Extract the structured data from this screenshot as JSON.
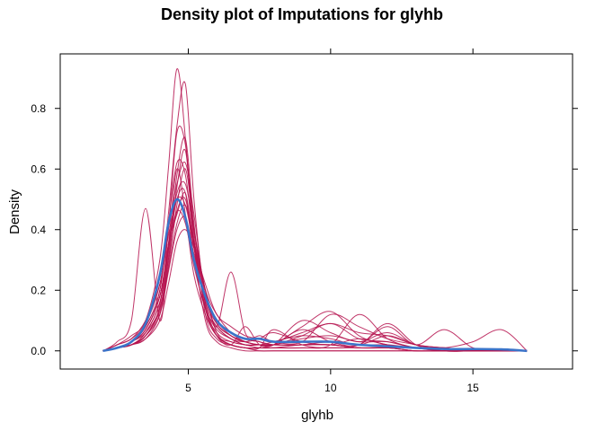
{
  "chart_data": {
    "type": "line",
    "title": "Density plot of Imputations for glyhb",
    "xlabel": "glyhb",
    "ylabel": "Density",
    "xlim": [
      0.5,
      18.5
    ],
    "ylim": [
      -0.06,
      0.98
    ],
    "x_ticks": [
      5,
      10,
      15
    ],
    "x_tick_labels": [
      "5",
      "10",
      "15"
    ],
    "y_ticks": [
      0.0,
      0.2,
      0.4,
      0.6,
      0.8
    ],
    "y_tick_labels": [
      "0.0",
      "0.2",
      "0.4",
      "0.6",
      "0.8"
    ],
    "grid": false,
    "legend": "none",
    "colors": {
      "observed": "#3b74c9",
      "imputed": "#b5124e"
    },
    "x": [
      2.0,
      2.5,
      3.0,
      3.5,
      4.0,
      4.3,
      4.6,
      4.9,
      5.2,
      5.6,
      6.0,
      6.5,
      7.0,
      7.5,
      8.0,
      9.0,
      10.0,
      11.0,
      12.0,
      13.0,
      14.0,
      15.0,
      16.0,
      16.9
    ],
    "series": [
      {
        "role": "observed",
        "values": [
          0.0,
          0.01,
          0.03,
          0.09,
          0.25,
          0.42,
          0.5,
          0.44,
          0.3,
          0.18,
          0.1,
          0.06,
          0.04,
          0.04,
          0.03,
          0.03,
          0.03,
          0.02,
          0.015,
          0.01,
          0.006,
          0.006,
          0.005,
          0.0
        ]
      },
      {
        "role": "imputed",
        "values": [
          0.0,
          0.03,
          0.1,
          0.47,
          0.1,
          0.35,
          0.6,
          0.45,
          0.25,
          0.12,
          0.05,
          0.02,
          0.01,
          0.01,
          0.01,
          0.02,
          0.02,
          0.01,
          0.01,
          0.0,
          0.0,
          0.0,
          0.0,
          0.0
        ]
      },
      {
        "role": "imputed",
        "values": [
          0.0,
          0.02,
          0.05,
          0.1,
          0.3,
          0.6,
          0.93,
          0.7,
          0.35,
          0.1,
          0.03,
          0.01,
          0.0,
          0.0,
          0.0,
          0.0,
          0.0,
          0.0,
          0.0,
          0.0,
          0.0,
          0.0,
          0.0,
          0.0
        ]
      },
      {
        "role": "imputed",
        "values": [
          0.0,
          0.01,
          0.03,
          0.08,
          0.2,
          0.45,
          0.74,
          0.88,
          0.5,
          0.15,
          0.05,
          0.02,
          0.01,
          0.01,
          0.01,
          0.01,
          0.01,
          0.01,
          0.01,
          0.0,
          0.0,
          0.0,
          0.0,
          0.0
        ]
      },
      {
        "role": "imputed",
        "values": [
          0.0,
          0.01,
          0.02,
          0.05,
          0.15,
          0.4,
          0.72,
          0.68,
          0.4,
          0.2,
          0.06,
          0.02,
          0.01,
          0.0,
          0.0,
          0.0,
          0.0,
          0.0,
          0.0,
          0.0,
          0.0,
          0.0,
          0.0,
          0.0
        ]
      },
      {
        "role": "imputed",
        "values": [
          0.0,
          0.02,
          0.04,
          0.09,
          0.22,
          0.4,
          0.55,
          0.62,
          0.45,
          0.18,
          0.1,
          0.06,
          0.04,
          0.03,
          0.02,
          0.02,
          0.02,
          0.01,
          0.01,
          0.01,
          0.0,
          0.0,
          0.0,
          0.0
        ]
      },
      {
        "role": "imputed",
        "values": [
          0.0,
          0.01,
          0.03,
          0.07,
          0.18,
          0.35,
          0.45,
          0.52,
          0.35,
          0.2,
          0.08,
          0.26,
          0.06,
          0.03,
          0.02,
          0.02,
          0.02,
          0.01,
          0.01,
          0.0,
          0.0,
          0.0,
          0.0,
          0.0
        ]
      },
      {
        "role": "imputed",
        "values": [
          0.0,
          0.01,
          0.02,
          0.04,
          0.12,
          0.28,
          0.48,
          0.6,
          0.4,
          0.16,
          0.05,
          0.02,
          0.08,
          0.02,
          0.02,
          0.08,
          0.13,
          0.05,
          0.02,
          0.01,
          0.01,
          0.0,
          0.0,
          0.0
        ]
      },
      {
        "role": "imputed",
        "values": [
          0.0,
          0.01,
          0.02,
          0.06,
          0.16,
          0.32,
          0.58,
          0.7,
          0.42,
          0.12,
          0.04,
          0.02,
          0.01,
          0.01,
          0.07,
          0.02,
          0.01,
          0.02,
          0.08,
          0.02,
          0.07,
          0.01,
          0.0,
          0.0
        ]
      },
      {
        "role": "imputed",
        "values": [
          0.0,
          0.02,
          0.04,
          0.1,
          0.22,
          0.38,
          0.5,
          0.48,
          0.34,
          0.16,
          0.08,
          0.04,
          0.02,
          0.02,
          0.02,
          0.05,
          0.09,
          0.04,
          0.03,
          0.01,
          0.01,
          0.03,
          0.07,
          0.0
        ]
      },
      {
        "role": "imputed",
        "values": [
          0.0,
          0.01,
          0.03,
          0.06,
          0.14,
          0.3,
          0.54,
          0.66,
          0.38,
          0.14,
          0.05,
          0.03,
          0.02,
          0.02,
          0.02,
          0.1,
          0.06,
          0.03,
          0.06,
          0.02,
          0.01,
          0.0,
          0.0,
          0.0
        ]
      },
      {
        "role": "imputed",
        "values": [
          0.0,
          0.01,
          0.02,
          0.05,
          0.12,
          0.26,
          0.4,
          0.44,
          0.32,
          0.18,
          0.1,
          0.05,
          0.03,
          0.05,
          0.03,
          0.03,
          0.12,
          0.08,
          0.04,
          0.02,
          0.0,
          0.0,
          0.0,
          0.0
        ]
      },
      {
        "role": "imputed",
        "values": [
          0.0,
          0.01,
          0.03,
          0.08,
          0.2,
          0.42,
          0.62,
          0.58,
          0.36,
          0.14,
          0.06,
          0.03,
          0.02,
          0.01,
          0.01,
          0.01,
          0.02,
          0.12,
          0.04,
          0.01,
          0.0,
          0.0,
          0.0,
          0.0
        ]
      },
      {
        "role": "imputed",
        "values": [
          0.0,
          0.01,
          0.02,
          0.05,
          0.13,
          0.27,
          0.42,
          0.48,
          0.36,
          0.2,
          0.12,
          0.06,
          0.03,
          0.02,
          0.02,
          0.04,
          0.05,
          0.03,
          0.03,
          0.01,
          0.0,
          0.0,
          0.0,
          0.0
        ]
      },
      {
        "role": "imputed",
        "values": [
          0.0,
          0.01,
          0.02,
          0.04,
          0.1,
          0.22,
          0.36,
          0.4,
          0.34,
          0.22,
          0.12,
          0.08,
          0.05,
          0.04,
          0.03,
          0.06,
          0.09,
          0.06,
          0.05,
          0.02,
          0.01,
          0.0,
          0.0,
          0.0
        ]
      },
      {
        "role": "imputed",
        "values": [
          0.0,
          0.01,
          0.03,
          0.07,
          0.18,
          0.35,
          0.52,
          0.55,
          0.4,
          0.2,
          0.09,
          0.05,
          0.03,
          0.02,
          0.03,
          0.05,
          0.04,
          0.02,
          0.05,
          0.02,
          0.01,
          0.0,
          0.0,
          0.0
        ]
      },
      {
        "role": "imputed",
        "values": [
          0.0,
          0.01,
          0.02,
          0.06,
          0.16,
          0.33,
          0.5,
          0.52,
          0.3,
          0.14,
          0.08,
          0.04,
          0.03,
          0.04,
          0.06,
          0.03,
          0.02,
          0.04,
          0.02,
          0.01,
          0.0,
          0.0,
          0.0,
          0.0
        ]
      },
      {
        "role": "imputed",
        "values": [
          0.0,
          0.01,
          0.02,
          0.05,
          0.14,
          0.3,
          0.46,
          0.5,
          0.34,
          0.17,
          0.09,
          0.05,
          0.03,
          0.02,
          0.02,
          0.07,
          0.03,
          0.02,
          0.09,
          0.02,
          0.0,
          0.0,
          0.0,
          0.0
        ]
      },
      {
        "role": "imputed",
        "values": [
          0.0,
          0.01,
          0.03,
          0.07,
          0.18,
          0.34,
          0.46,
          0.42,
          0.28,
          0.14,
          0.07,
          0.04,
          0.02,
          0.02,
          0.02,
          0.02,
          0.03,
          0.02,
          0.02,
          0.01,
          0.0,
          0.0,
          0.0,
          0.0
        ]
      }
    ]
  }
}
